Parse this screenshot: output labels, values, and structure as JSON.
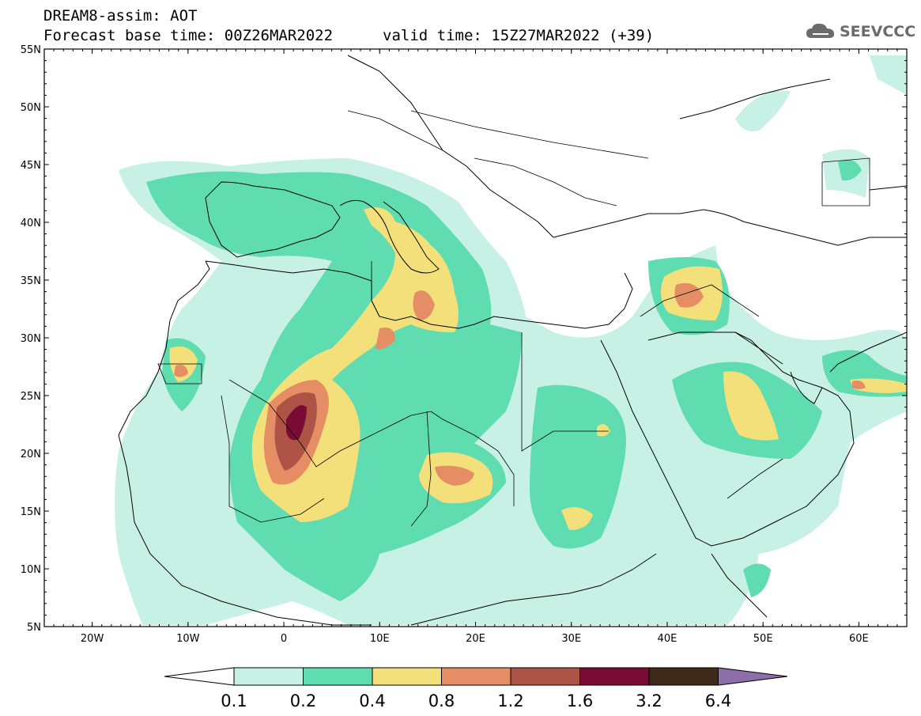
{
  "header": {
    "model_line": "DREAM8-assim: AOT",
    "base_time": "Forecast base time: 00Z26MAR2022",
    "valid_time": "valid time: 15Z27MAR2022 (+39)",
    "logo_text": "SEEVCCC"
  },
  "map": {
    "lat_labels": [
      "55N",
      "50N",
      "45N",
      "40N",
      "35N",
      "30N",
      "25N",
      "20N",
      "15N",
      "10N",
      "5N"
    ],
    "lon_labels": [
      "20W",
      "10W",
      "0",
      "10E",
      "20E",
      "30E",
      "40E",
      "50E",
      "60E"
    ],
    "extent": {
      "lon_min": -25,
      "lon_max": 65,
      "lat_min": 5,
      "lat_max": 55
    }
  },
  "colorbar": {
    "levels": [
      "0.1",
      "0.2",
      "0.4",
      "0.8",
      "1.2",
      "1.6",
      "3.2",
      "6.4"
    ],
    "colors": [
      "#ffffff",
      "#c8f1e5",
      "#5fdcb0",
      "#f4e07a",
      "#e58e65",
      "#ad5447",
      "#7a0b35",
      "#3e2a1b",
      "#8e6ea8"
    ]
  }
}
